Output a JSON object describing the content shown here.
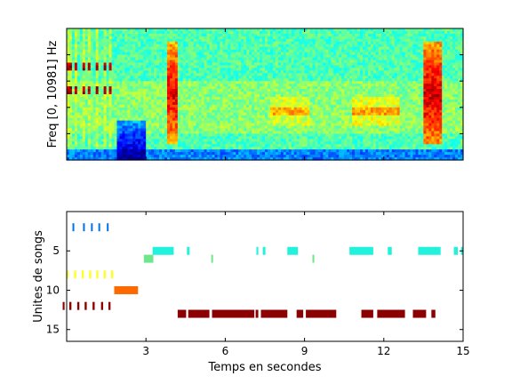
{
  "chart_data": [
    {
      "type": "heatmap",
      "ylabel": "Freq [0, 10981] Hz",
      "xlim": [
        0,
        15
      ],
      "ylim": [
        0,
        10981
      ],
      "colormap": "jet",
      "features": [
        {
          "kind": "background",
          "from": 0,
          "to": 15,
          "level": 0.45
        },
        {
          "kind": "quiet-region",
          "from": 1.9,
          "to": 3.0,
          "level": 0.3
        },
        {
          "kind": "harmonic-bursts",
          "from": 0.05,
          "to": 1.9,
          "count": 7,
          "freqs": [
            0.53,
            0.71
          ],
          "level": 0.95
        },
        {
          "kind": "broadband-burst",
          "from": 3.8,
          "to": 4.2,
          "level": 0.9
        },
        {
          "kind": "broadband-burst",
          "from": 13.5,
          "to": 14.2,
          "level": 0.92
        },
        {
          "kind": "band",
          "from": 7.7,
          "to": 9.2,
          "freq": 0.37,
          "level": 0.7
        },
        {
          "kind": "band",
          "from": 10.8,
          "to": 12.6,
          "freq": 0.37,
          "level": 0.72
        }
      ]
    },
    {
      "type": "scatter",
      "xlabel": "Temps en secondes",
      "ylabel": "Unites de songs",
      "xlim": [
        0,
        15
      ],
      "ylim": [
        0,
        16.5
      ],
      "y_reversed": true,
      "xticks": [
        3,
        6,
        9,
        12,
        15
      ],
      "yticks": [
        5,
        10,
        15
      ],
      "segments": [
        {
          "unit": 2,
          "color": "#0072e8",
          "spans": [
            [
              0.22,
              0.28
            ],
            [
              0.62,
              0.68
            ],
            [
              0.92,
              0.98
            ],
            [
              1.2,
              1.26
            ],
            [
              1.52,
              1.58
            ]
          ]
        },
        {
          "unit": 5,
          "color": "#22f2dc",
          "spans": [
            [
              3.25,
              4.05
            ],
            [
              4.55,
              4.65
            ],
            [
              7.18,
              7.25
            ],
            [
              7.42,
              7.52
            ],
            [
              8.35,
              8.75
            ],
            [
              10.7,
              11.6
            ],
            [
              12.15,
              12.3
            ],
            [
              13.3,
              14.15
            ],
            [
              14.65,
              14.8
            ],
            [
              14.92,
              15.0
            ]
          ]
        },
        {
          "unit": 6,
          "color": "#6ee68a",
          "spans": [
            [
              2.92,
              3.28
            ],
            [
              5.47,
              5.53
            ],
            [
              9.3,
              9.36
            ]
          ]
        },
        {
          "unit": 8,
          "color": "#ffff20",
          "spans": [
            [
              0.0,
              0.07
            ],
            [
              0.28,
              0.36
            ],
            [
              0.57,
              0.65
            ],
            [
              0.85,
              0.93
            ],
            [
              1.12,
              1.2
            ],
            [
              1.4,
              1.48
            ],
            [
              1.68,
              1.76
            ]
          ]
        },
        {
          "unit": 10,
          "color": "#ff6a00",
          "spans": [
            [
              1.8,
              2.7
            ]
          ]
        },
        {
          "unit": 12,
          "color": "#8b0000",
          "spans": [
            [
              -0.15,
              -0.08
            ],
            [
              0.1,
              0.18
            ],
            [
              0.4,
              0.48
            ],
            [
              0.68,
              0.76
            ],
            [
              0.98,
              1.06
            ],
            [
              1.3,
              1.38
            ],
            [
              1.58,
              1.66
            ]
          ]
        },
        {
          "unit": 13,
          "color": "#8b0000",
          "spans": [
            [
              4.2,
              4.52
            ],
            [
              4.6,
              5.4
            ],
            [
              5.5,
              7.1
            ],
            [
              7.15,
              7.25
            ],
            [
              7.35,
              8.35
            ],
            [
              8.7,
              8.95
            ],
            [
              9.05,
              10.2
            ],
            [
              11.15,
              11.6
            ],
            [
              11.75,
              12.8
            ],
            [
              13.1,
              13.6
            ],
            [
              13.8,
              13.95
            ]
          ]
        }
      ]
    }
  ]
}
